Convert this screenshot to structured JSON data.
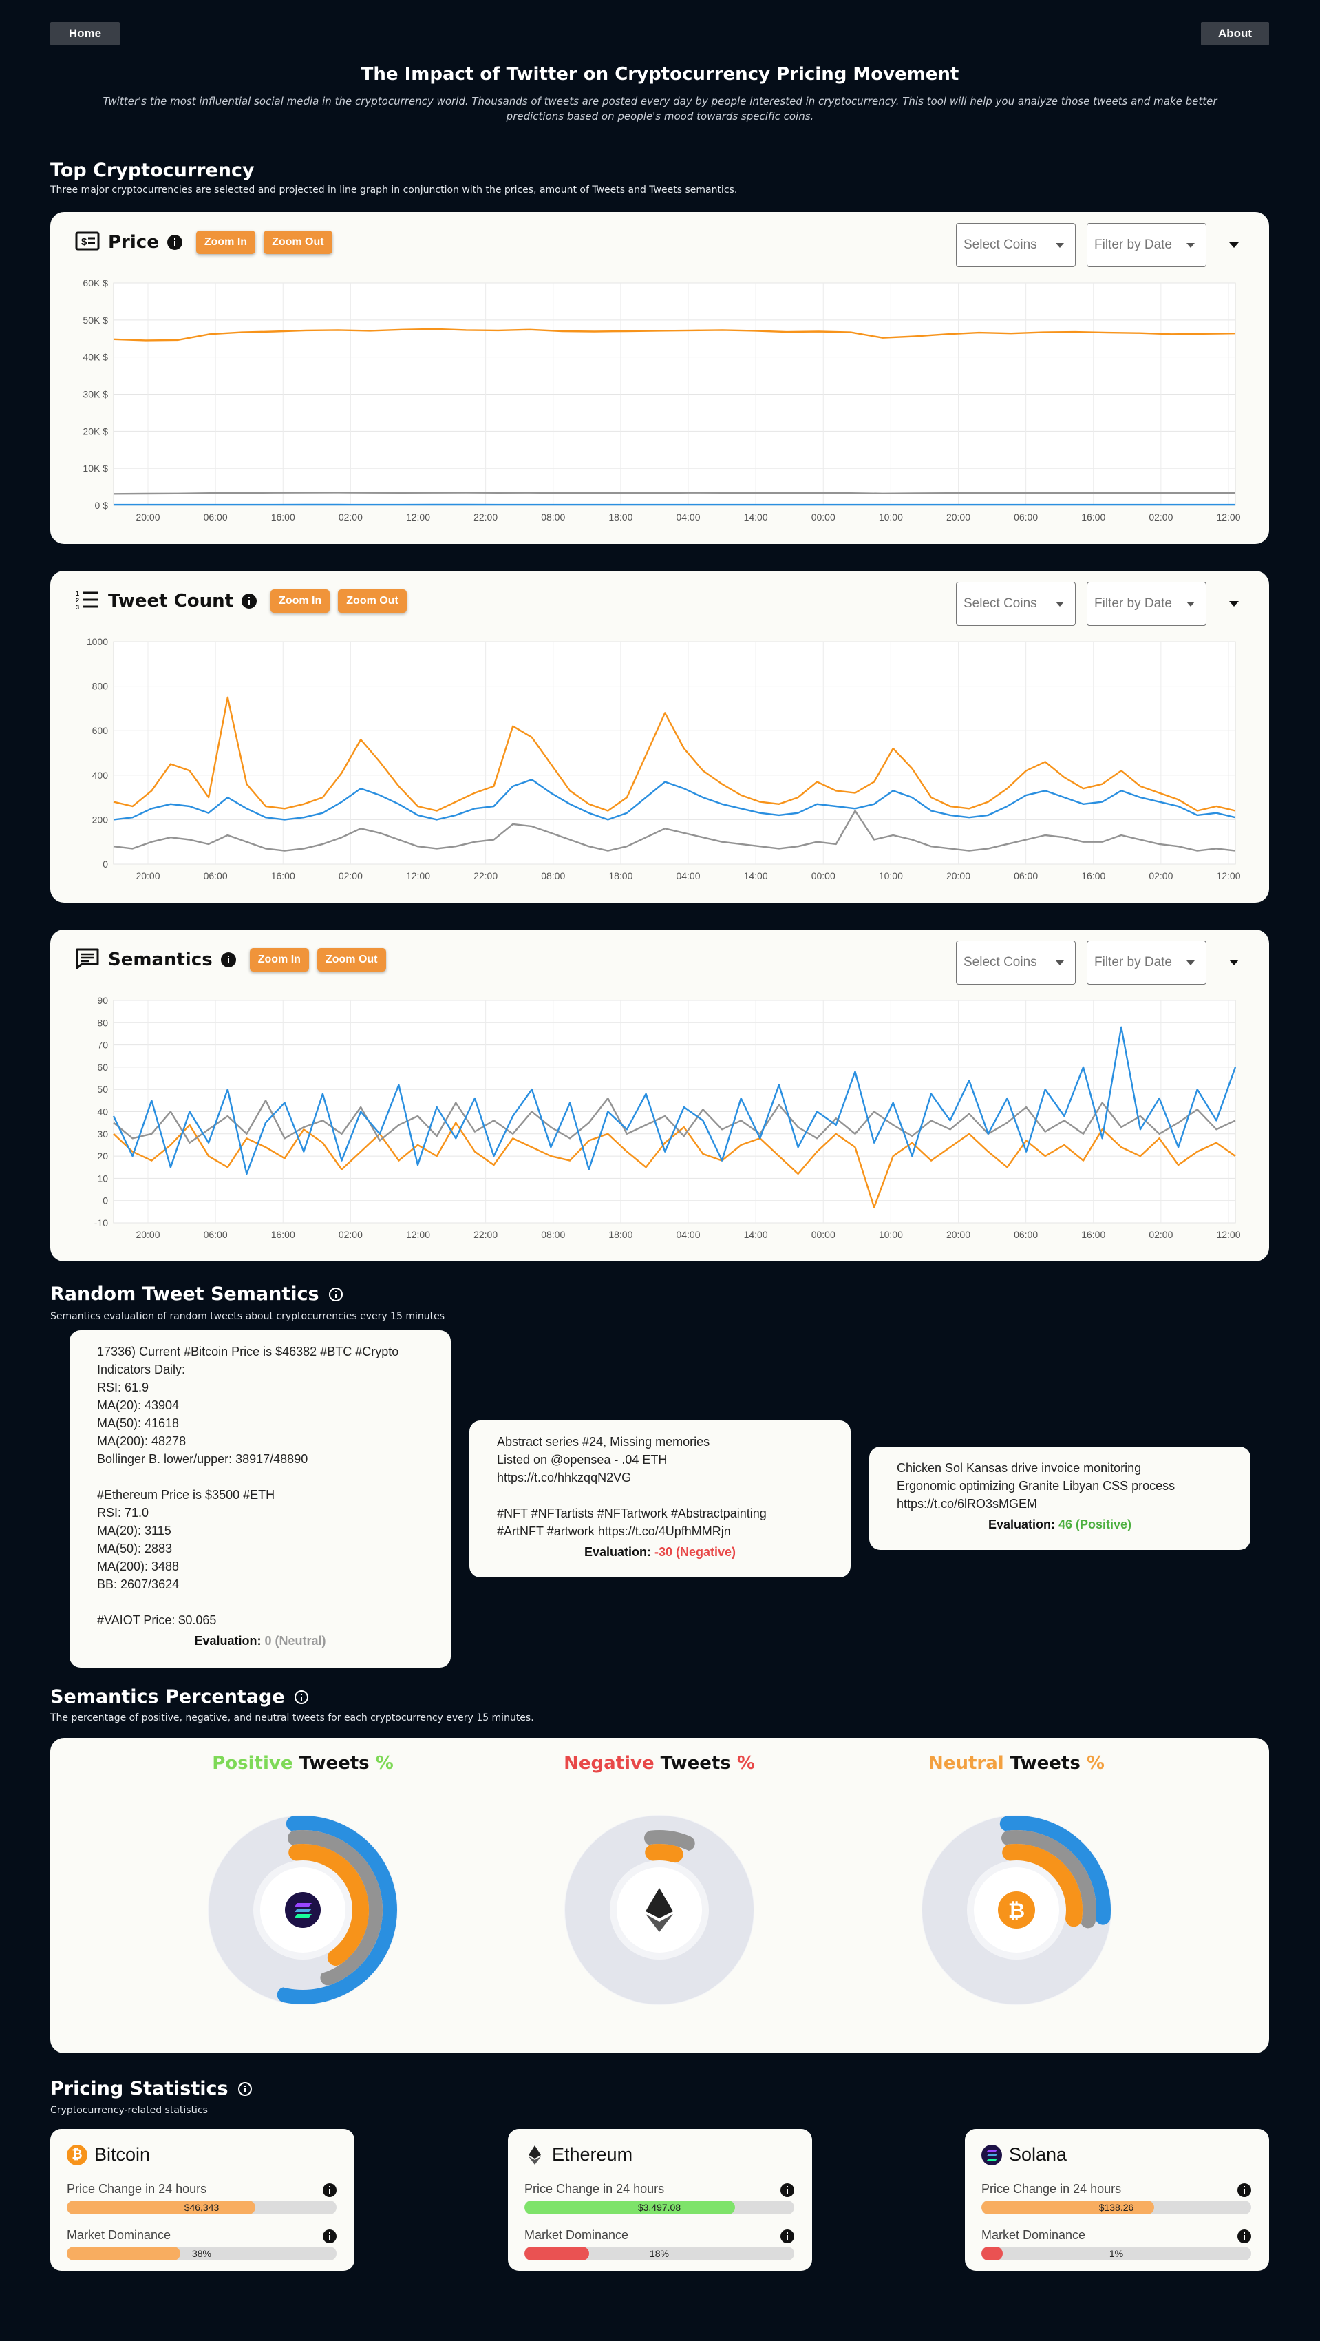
{
  "nav": {
    "home": "Home",
    "about": "About"
  },
  "hero": {
    "title": "The Impact of Twitter on Cryptocurrency Pricing Movement",
    "description": "Twitter's the most influential social media in the cryptocurrency world. Thousands of tweets are posted every day by people interested in cryptocurrency. This tool will help you analyze those tweets and make better predictions based on people's mood towards specific coins."
  },
  "top_crypto": {
    "title": "Top Cryptocurrency",
    "subtitle": "Three major cryptocurrencies are selected and projected in line graph in conjunction with the prices, amount of Tweets and Tweets semantics."
  },
  "controls": {
    "zoom_in": "Zoom In",
    "zoom_out": "Zoom Out",
    "select_coins": "Select Coins",
    "filter_date": "Filter by Date"
  },
  "colors": {
    "bitcoin": "#f7931a",
    "ethereum": "#939393",
    "solana": "#2a8fe0",
    "accent": "#f0943a",
    "positive": "#7ed957",
    "negative": "#e84848",
    "neutral": "#f3a03f"
  },
  "x_ticks": [
    "20:00",
    "06:00",
    "16:00",
    "02:00",
    "12:00",
    "22:00",
    "08:00",
    "18:00",
    "04:00",
    "14:00",
    "00:00",
    "10:00",
    "20:00",
    "06:00",
    "16:00",
    "02:00",
    "12:00"
  ],
  "chart_data": [
    {
      "type": "line",
      "title": "Price",
      "icon": "price-tag-icon",
      "y_ticks": [
        "60K $",
        "50K $",
        "40K $",
        "30K $",
        "20K $",
        "10K $",
        "0 $"
      ],
      "ylim": [
        0,
        60000
      ],
      "grid": true,
      "series": [
        {
          "color": "#f7931a",
          "values": [
            44800,
            44500,
            44600,
            46200,
            46700,
            46900,
            47200,
            47300,
            47100,
            47400,
            47600,
            47300,
            47200,
            47400,
            47000,
            46900,
            47000,
            47100,
            47200,
            47300,
            47100,
            46800,
            46900,
            46700,
            45200,
            45600,
            46200,
            46600,
            46400,
            46700,
            46800,
            46600,
            46500,
            46200,
            46300,
            46400
          ]
        },
        {
          "color": "#939393",
          "values": [
            3100,
            3150,
            3200,
            3300,
            3350,
            3400,
            3420,
            3450,
            3400,
            3380,
            3400,
            3420,
            3380,
            3400,
            3350,
            3300,
            3320,
            3350,
            3400,
            3380,
            3350,
            3300,
            3320,
            3300,
            3200,
            3250,
            3300,
            3330,
            3350,
            3360,
            3380,
            3350,
            3340,
            3300,
            3320,
            3350
          ]
        },
        {
          "color": "#2a8fe0",
          "values": [
            160,
            160,
            165,
            170,
            172,
            175,
            178,
            178,
            176,
            175,
            178,
            180,
            176,
            175,
            172,
            170,
            171,
            172,
            175,
            176,
            174,
            170,
            171,
            170,
            165,
            166,
            168,
            170,
            172,
            173,
            174,
            172,
            171,
            168,
            170,
            172
          ]
        }
      ]
    },
    {
      "type": "line",
      "title": "Tweet Count",
      "icon": "numbered-list-icon",
      "y_ticks": [
        "1000",
        "800",
        "600",
        "400",
        "200",
        "0"
      ],
      "ylim": [
        0,
        1000
      ],
      "grid": true,
      "series": [
        {
          "color": "#f7931a",
          "values": [
            280,
            260,
            330,
            450,
            420,
            300,
            750,
            360,
            260,
            250,
            270,
            300,
            410,
            560,
            460,
            350,
            260,
            240,
            280,
            320,
            350,
            620,
            570,
            450,
            330,
            270,
            240,
            300,
            490,
            680,
            520,
            420,
            360,
            310,
            280,
            270,
            300,
            370,
            330,
            320,
            370,
            520,
            430,
            300,
            260,
            250,
            280,
            340,
            420,
            460,
            390,
            340,
            360,
            420,
            350,
            320,
            290,
            240,
            260,
            240
          ]
        },
        {
          "color": "#2a8fe0",
          "values": [
            200,
            210,
            250,
            270,
            260,
            230,
            300,
            250,
            210,
            200,
            210,
            230,
            280,
            340,
            310,
            270,
            220,
            200,
            220,
            250,
            260,
            350,
            380,
            320,
            270,
            230,
            200,
            230,
            300,
            370,
            340,
            300,
            270,
            250,
            230,
            220,
            230,
            270,
            260,
            250,
            270,
            330,
            300,
            240,
            220,
            210,
            220,
            260,
            310,
            330,
            300,
            270,
            280,
            330,
            300,
            280,
            260,
            220,
            230,
            210
          ]
        },
        {
          "color": "#939393",
          "values": [
            80,
            70,
            100,
            120,
            110,
            90,
            130,
            100,
            70,
            60,
            70,
            90,
            120,
            160,
            140,
            110,
            80,
            70,
            80,
            100,
            110,
            180,
            170,
            140,
            110,
            80,
            60,
            80,
            120,
            160,
            140,
            120,
            100,
            90,
            80,
            70,
            80,
            100,
            90,
            240,
            110,
            130,
            110,
            80,
            70,
            60,
            70,
            90,
            110,
            130,
            120,
            100,
            100,
            130,
            110,
            90,
            80,
            60,
            70,
            60
          ]
        }
      ]
    },
    {
      "type": "line",
      "title": "Semantics",
      "icon": "chat-list-icon",
      "y_ticks": [
        "90",
        "80",
        "70",
        "60",
        "50",
        "40",
        "30",
        "20",
        "10",
        "0",
        "-10"
      ],
      "ylim": [
        -10,
        90
      ],
      "grid": true,
      "series": [
        {
          "color": "#f7931a",
          "values": [
            30,
            22,
            18,
            25,
            34,
            20,
            15,
            28,
            24,
            19,
            32,
            26,
            14,
            22,
            30,
            18,
            25,
            20,
            35,
            22,
            16,
            28,
            24,
            20,
            18,
            27,
            30,
            22,
            15,
            26,
            33,
            21,
            18,
            25,
            28,
            20,
            12,
            22,
            30,
            24,
            -3,
            20,
            26,
            18,
            24,
            30,
            22,
            15,
            27,
            20,
            25,
            18,
            32,
            24,
            20,
            28,
            16,
            22,
            26,
            20
          ]
        },
        {
          "color": "#939393",
          "values": [
            35,
            28,
            30,
            40,
            26,
            32,
            38,
            30,
            45,
            28,
            33,
            36,
            30,
            42,
            27,
            34,
            38,
            29,
            44,
            31,
            36,
            30,
            40,
            33,
            28,
            35,
            46,
            30,
            34,
            38,
            29,
            41,
            32,
            36,
            30,
            43,
            33,
            28,
            37,
            30,
            40,
            34,
            29,
            36,
            32,
            39,
            30,
            35,
            42,
            31,
            36,
            30,
            44,
            33,
            38,
            30,
            35,
            41,
            32,
            36
          ]
        },
        {
          "color": "#2a8fe0",
          "values": [
            38,
            20,
            45,
            15,
            40,
            26,
            50,
            12,
            35,
            44,
            22,
            48,
            18,
            40,
            30,
            52,
            16,
            42,
            28,
            46,
            20,
            38,
            50,
            24,
            44,
            14,
            40,
            32,
            48,
            22,
            42,
            36,
            18,
            46,
            28,
            52,
            24,
            40,
            34,
            58,
            26,
            44,
            20,
            48,
            36,
            54,
            30,
            46,
            22,
            50,
            38,
            60,
            28,
            78,
            32,
            46,
            24,
            50,
            36,
            60
          ]
        }
      ]
    }
  ],
  "random_tweets": {
    "title": "Random Tweet Semantics",
    "subtitle": "Semantics evaluation of random tweets about cryptocurrencies every 15 minutes",
    "eval_label": "Evaluation:",
    "items": [
      {
        "text": "17336) Current #Bitcoin Price is $46382 #BTC #Crypto\nIndicators Daily:\nRSI: 61.9\nMA(20): 43904\nMA(50): 41618\nMA(200): 48278\nBollinger B. lower/upper: 38917/48890\n\n#Ethereum Price is $3500 #ETH\nRSI: 71.0\nMA(20): 3115\nMA(50): 2883\nMA(200): 3488\nBB: 2607/3624\n\n#VAIOT Price: $0.065",
        "score": "0 (Neutral)",
        "color": "#9a9a9a"
      },
      {
        "text": "Abstract series #24, Missing memories\nListed on @opensea - .04 ETH\nhttps://t.co/hhkzqqN2VG\n\n#NFT #NFTartists #NFTartwork #Abstractpainting\n#ArtNFT #artwork https://t.co/4UpfhMMRjn",
        "score": "-30 (Negative)",
        "color": "#e84848"
      },
      {
        "text": "Chicken Sol Kansas drive invoice monitoring\nErgonomic optimizing Granite Libyan CSS process\nhttps://t.co/6lRO3sMGEM",
        "score": "46 (Positive)",
        "color": "#4caf3f"
      }
    ]
  },
  "semantics_pct": {
    "title": "Semantics Percentage",
    "subtitle": "The percentage of positive, negative, and neutral tweets for each cryptocurrency every 15 minutes.",
    "tweets_word": "Tweets",
    "pct_sign": "%",
    "groups": [
      {
        "label": "Positive",
        "center_icon": "solana-logo-icon",
        "rings": [
          {
            "name": "Solana",
            "value": 0.55,
            "color": "#2a8fe0"
          },
          {
            "name": "Ethereum",
            "value": 0.46,
            "color": "#939393"
          },
          {
            "name": "Bitcoin",
            "value": 0.42,
            "color": "#f7931a"
          }
        ]
      },
      {
        "label": "Negative",
        "center_icon": "ethereum-logo-icon",
        "rings": [
          {
            "name": "Solana",
            "value": 0.0,
            "color": "#2a8fe0"
          },
          {
            "name": "Ethereum",
            "value": 0.08,
            "color": "#939393"
          },
          {
            "name": "Bitcoin",
            "value": 0.06,
            "color": "#f7931a"
          }
        ]
      },
      {
        "label": "Neutral",
        "center_icon": "bitcoin-logo-icon",
        "rings": [
          {
            "name": "Solana",
            "value": 0.28,
            "color": "#2a8fe0"
          },
          {
            "name": "Ethereum",
            "value": 0.29,
            "color": "#939393"
          },
          {
            "name": "Bitcoin",
            "value": 0.29,
            "color": "#f7931a"
          }
        ]
      }
    ]
  },
  "pricing": {
    "title": "Pricing Statistics",
    "subtitle": "Cryptocurrency-related statistics",
    "price_change_label": "Price Change in 24 hours",
    "dominance_label": "Market Dominance",
    "coins": [
      {
        "name": "Bitcoin",
        "icon": "bitcoin-logo-icon",
        "price": "$46,343",
        "price_fill": 0.7,
        "price_color": "#f8ad60",
        "dominance": "38%",
        "dom_fill": 0.42,
        "dom_color": "#f8ad60"
      },
      {
        "name": "Ethereum",
        "icon": "ethereum-logo-icon",
        "price": "$3,497.08",
        "price_fill": 0.78,
        "price_color": "#7ee36a",
        "dominance": "18%",
        "dom_fill": 0.24,
        "dom_color": "#ea5252"
      },
      {
        "name": "Solana",
        "icon": "solana-logo-icon",
        "price": "$138.26",
        "price_fill": 0.64,
        "price_color": "#f8ad60",
        "dominance": "1%",
        "dom_fill": 0.08,
        "dom_color": "#ea5252"
      }
    ]
  }
}
